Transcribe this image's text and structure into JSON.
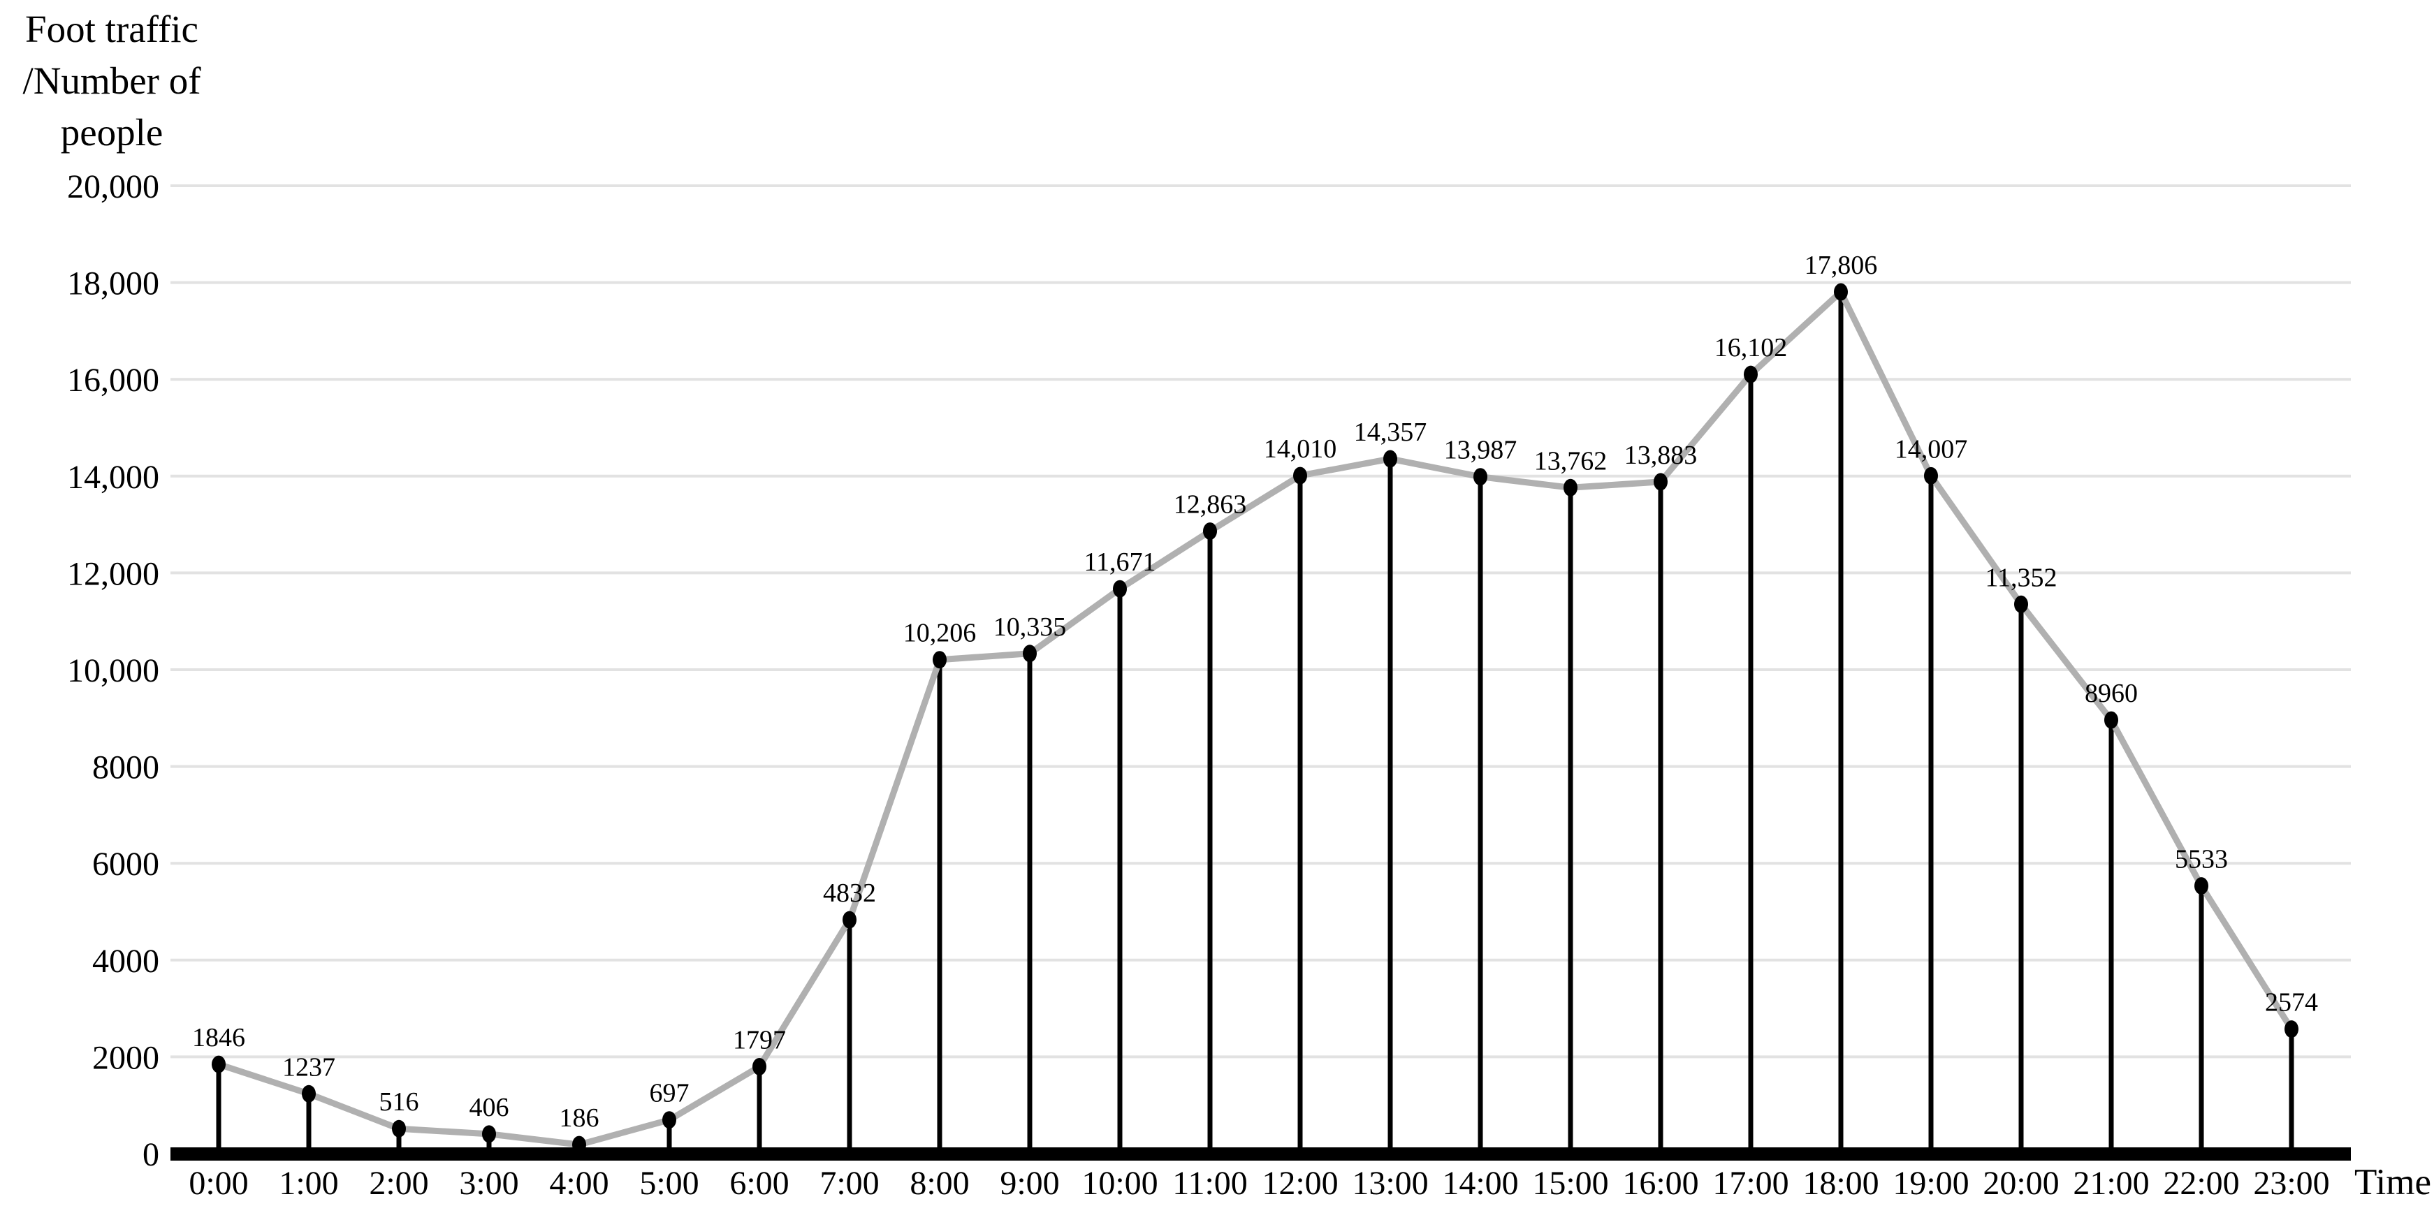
{
  "chart_data": {
    "type": "line",
    "style": "lollipop-line (black stems and markers from baseline, gray connecting line, value labels above each point)",
    "title": "",
    "ylabel": "Foot traffic /Number of people",
    "ylabel_lines": [
      "Foot traffic",
      "/Number of",
      "people"
    ],
    "xlabel": "Time",
    "categories": [
      "0:00",
      "1:00",
      "2:00",
      "3:00",
      "4:00",
      "5:00",
      "6:00",
      "7:00",
      "8:00",
      "9:00",
      "10:00",
      "11:00",
      "12:00",
      "13:00",
      "14:00",
      "15:00",
      "16:00",
      "17:00",
      "18:00",
      "19:00",
      "20:00",
      "21:00",
      "22:00",
      "23:00"
    ],
    "values": [
      1846,
      1237,
      516,
      406,
      186,
      697,
      1797,
      4832,
      10206,
      10335,
      11671,
      12863,
      14010,
      14357,
      13987,
      13762,
      13883,
      16102,
      17806,
      14007,
      11352,
      8960,
      5533,
      2574
    ],
    "point_labels": [
      "1846",
      "1237",
      "516",
      "406",
      "186",
      "697",
      "1797",
      "4832",
      "10,206",
      "10,335",
      "11,671",
      "12,863",
      "14,010",
      "14,357",
      "13,987",
      "13,762",
      "13,883",
      "16,102",
      "17,806",
      "14,007",
      "11,352",
      "8960",
      "5533",
      "2574"
    ],
    "y_ticks": [
      {
        "value": 0,
        "label": "0"
      },
      {
        "value": 2000,
        "label": "2000"
      },
      {
        "value": 4000,
        "label": "4000"
      },
      {
        "value": 6000,
        "label": "6000"
      },
      {
        "value": 8000,
        "label": "8000"
      },
      {
        "value": 10000,
        "label": "10,000"
      },
      {
        "value": 12000,
        "label": "12,000"
      },
      {
        "value": 14000,
        "label": "14,000"
      },
      {
        "value": 16000,
        "label": "16,000"
      },
      {
        "value": 18000,
        "label": "18,000"
      },
      {
        "value": 20000,
        "label": "20,000"
      }
    ],
    "ylim": [
      0,
      20000
    ],
    "grid": "horizontal",
    "legend": "none",
    "colors": {
      "line": "#b0b0b0",
      "marker": "#000000",
      "stem": "#000000",
      "gridline": "#e2e2e2",
      "axis": "#000000",
      "text": "#000000",
      "background": "#ffffff"
    }
  }
}
